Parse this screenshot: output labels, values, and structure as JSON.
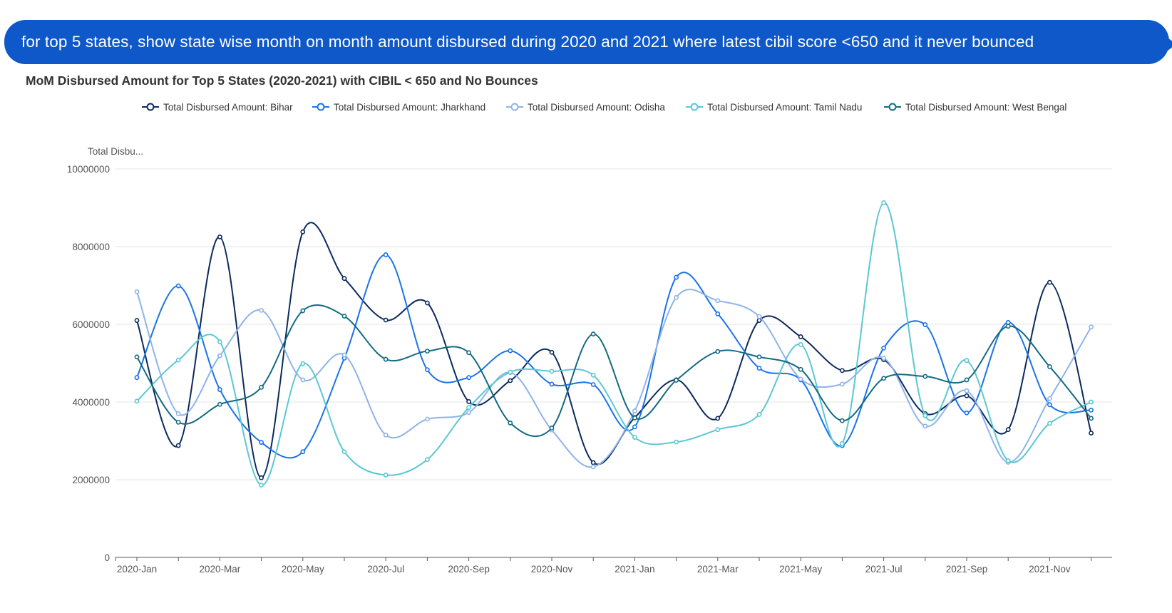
{
  "query": {
    "text": "for top 5 states, show state wise month on month amount disbursed during 2020 and 2021 where latest cibil score <650 and it never bounced"
  },
  "chart_data": {
    "type": "line",
    "title": "MoM Disbursed Amount for Top 5 States (2020-2021) with CIBIL < 650 and No Bounces",
    "ylabel": "Total Disbu...",
    "xlabel": "",
    "ylim": [
      0,
      10000000
    ],
    "y_ticks": [
      "0",
      "2000000",
      "4000000",
      "6000000",
      "8000000",
      "10000000"
    ],
    "y_tick_values": [
      0,
      2000000,
      4000000,
      6000000,
      8000000,
      10000000
    ],
    "x": [
      "2020-Jan",
      "2020-Feb",
      "2020-Mar",
      "2020-Apr",
      "2020-May",
      "2020-Jun",
      "2020-Jul",
      "2020-Aug",
      "2020-Sep",
      "2020-Oct",
      "2020-Nov",
      "2020-Dec",
      "2021-Jan",
      "2021-Feb",
      "2021-Mar",
      "2021-Apr",
      "2021-May",
      "2021-Jun",
      "2021-Jul",
      "2021-Aug",
      "2021-Sep",
      "2021-Oct",
      "2021-Nov",
      "2021-Dec"
    ],
    "x_tick_labels": [
      "2020-Jan",
      "2020-Mar",
      "2020-May",
      "2020-Jul",
      "2020-Sep",
      "2020-Nov",
      "2021-Jan",
      "2021-Mar",
      "2021-May",
      "2021-Jul",
      "2021-Sep",
      "2021-Nov"
    ],
    "grid": true,
    "legend_position": "top",
    "series": [
      {
        "name": "Total Disbursed Amount: Bihar",
        "color": "#0b2a5c",
        "values": [
          6100000,
          2880000,
          8250000,
          2050000,
          8380000,
          7180000,
          6110000,
          6550000,
          4010000,
          4550000,
          5280000,
          2440000,
          3600000,
          4570000,
          3580000,
          6100000,
          5680000,
          4810000,
          5090000,
          3700000,
          4160000,
          3290000,
          7080000,
          3200000
        ]
      },
      {
        "name": "Total Disbursed Amount: Jharkhand",
        "color": "#1a73e8",
        "values": [
          4630000,
          6990000,
          4320000,
          2960000,
          2720000,
          5130000,
          7790000,
          4830000,
          4630000,
          5320000,
          4460000,
          4450000,
          3360000,
          7210000,
          6270000,
          4870000,
          4570000,
          2880000,
          5390000,
          5990000,
          3720000,
          6050000,
          3930000,
          3790000
        ]
      },
      {
        "name": "Total Disbursed Amount: Odisha",
        "color": "#8fb3ea",
        "values": [
          6840000,
          3700000,
          5190000,
          6360000,
          4570000,
          5210000,
          3150000,
          3560000,
          3730000,
          4760000,
          3280000,
          2330000,
          3770000,
          6690000,
          6610000,
          6200000,
          4590000,
          4460000,
          5130000,
          3380000,
          4290000,
          2450000,
          4090000,
          5930000
        ]
      },
      {
        "name": "Total Disbursed Amount: Tamil Nadu",
        "color": "#5ac8d2",
        "values": [
          4020000,
          5080000,
          5550000,
          1860000,
          4990000,
          2720000,
          2120000,
          2520000,
          3860000,
          4770000,
          4790000,
          4690000,
          3090000,
          2970000,
          3290000,
          3680000,
          5480000,
          2930000,
          9130000,
          3650000,
          5070000,
          2490000,
          3450000,
          4000000
        ]
      },
      {
        "name": "Total Disbursed Amount: West Bengal",
        "color": "#136a82",
        "values": [
          5160000,
          3480000,
          3940000,
          4380000,
          6350000,
          6210000,
          5100000,
          5310000,
          5270000,
          3460000,
          3330000,
          5750000,
          3590000,
          4560000,
          5300000,
          5160000,
          4840000,
          3520000,
          4610000,
          4660000,
          4570000,
          5950000,
          4910000,
          3580000
        ]
      }
    ]
  }
}
